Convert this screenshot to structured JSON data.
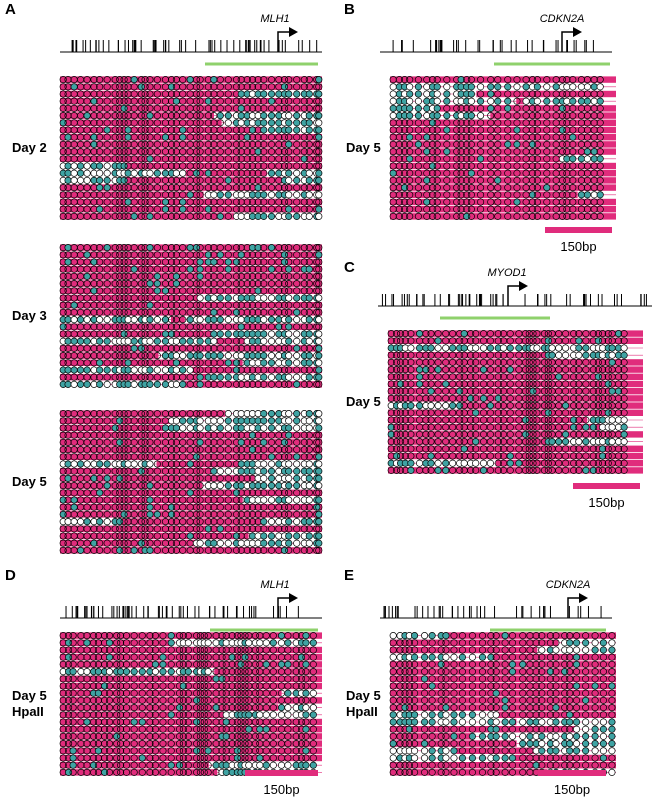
{
  "colors": {
    "methylated_fill": "#e02c7c",
    "cpg_filled": "#3fa3a3",
    "cpg_open": "#ffffff",
    "outline": "#000000",
    "cpg_island": "#8fd16c",
    "scale_bar": "#e02c7c"
  },
  "panels": [
    {
      "id": "A",
      "letter": "A",
      "gene": "MLH1",
      "groups": [
        {
          "label_lines": [
            "Day 2"
          ]
        },
        {
          "label_lines": [
            "Day 3"
          ]
        },
        {
          "label_lines": [
            "Day 5"
          ]
        }
      ]
    },
    {
      "id": "B",
      "letter": "B",
      "gene": "CDKN2A",
      "scale_label": "150bp",
      "groups": [
        {
          "label_lines": [
            "Day 5"
          ]
        }
      ]
    },
    {
      "id": "C",
      "letter": "C",
      "gene": "MYOD1",
      "scale_label": "150bp",
      "groups": [
        {
          "label_lines": [
            "Day 5"
          ]
        }
      ]
    },
    {
      "id": "D",
      "letter": "D",
      "gene": "MLH1",
      "scale_label": "150bp",
      "groups": [
        {
          "label_lines": [
            "Day 5",
            "HpaII"
          ]
        }
      ]
    },
    {
      "id": "E",
      "letter": "E",
      "gene": "CDKN2A",
      "scale_label": "150bp",
      "groups": [
        {
          "label_lines": [
            "Day 5",
            "HpaII"
          ]
        }
      ]
    }
  ]
}
